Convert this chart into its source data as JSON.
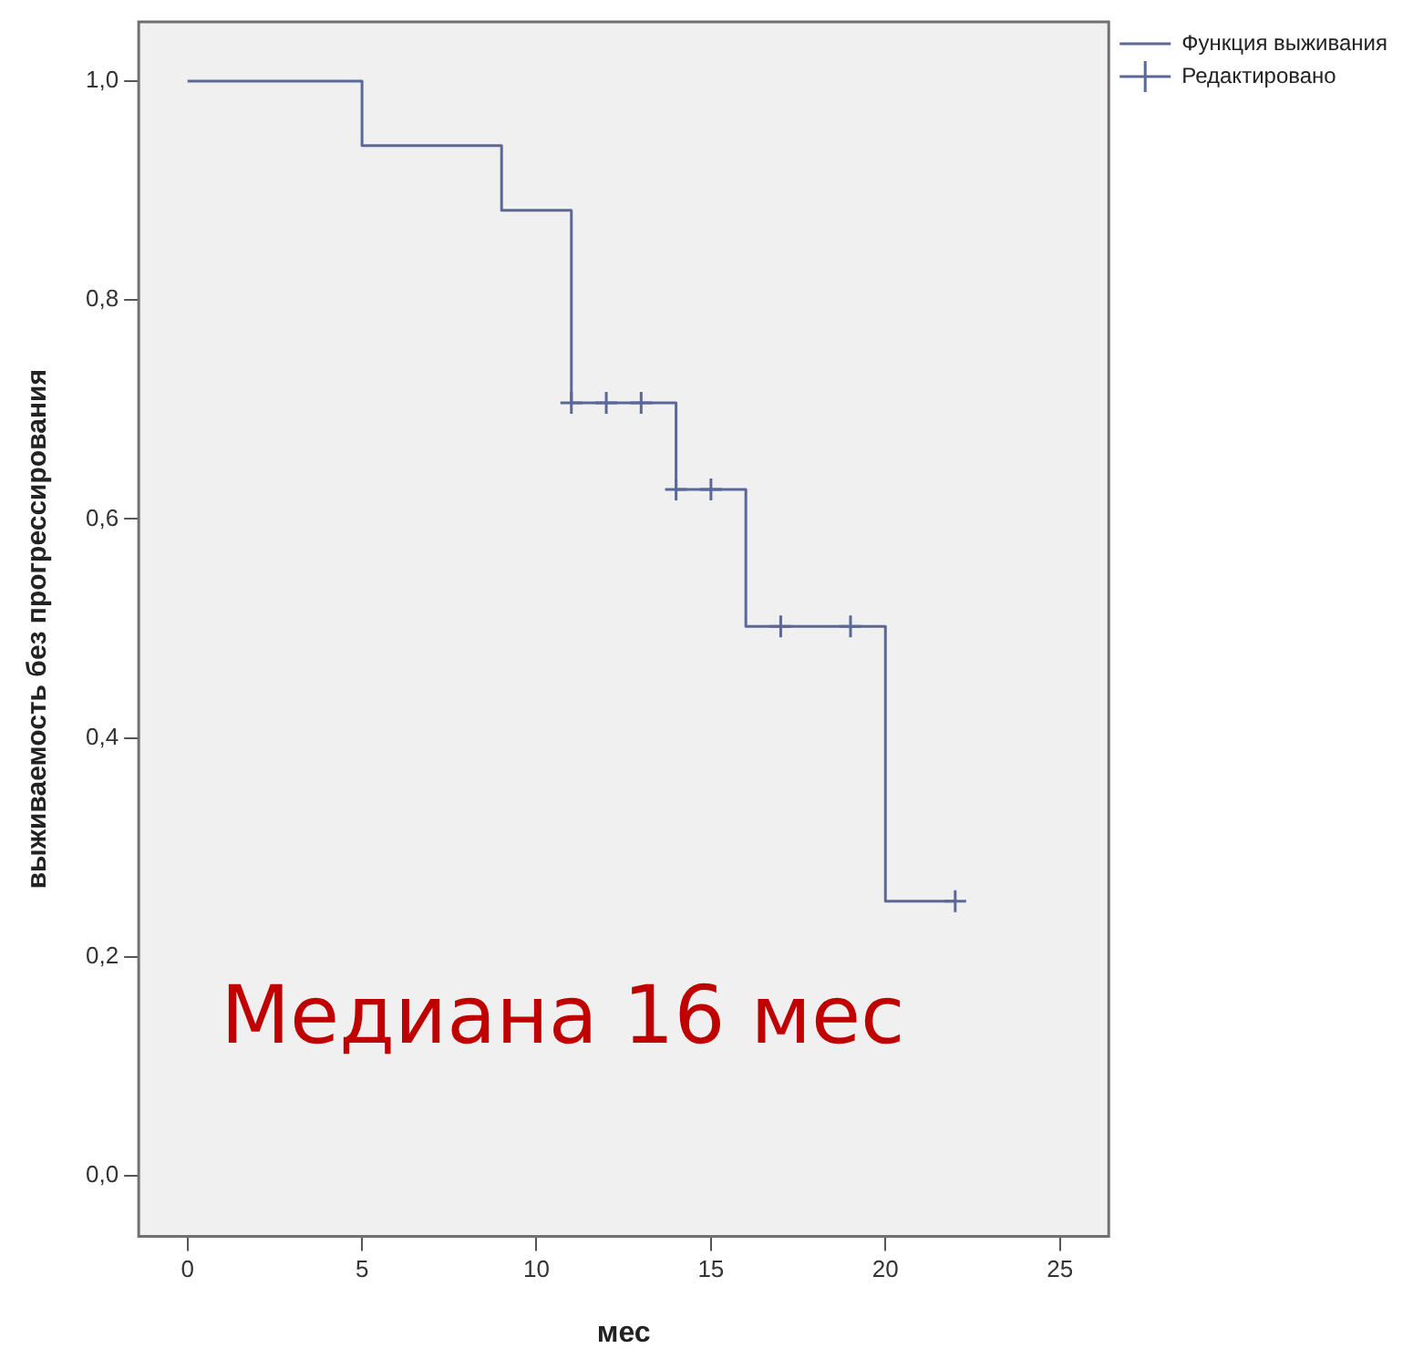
{
  "chart_data": {
    "type": "step",
    "xlabel": "мес",
    "ylabel": "выживаемость без прогрессирования",
    "xlim": [
      -1.4,
      26.4
    ],
    "xticks": [
      0,
      5,
      10,
      15,
      20,
      25
    ],
    "ylim": [
      -0.055,
      1.054
    ],
    "yticks": [
      {
        "value": 0,
        "label": "0,0"
      },
      {
        "value": 0.2,
        "label": "0,2"
      },
      {
        "value": 0.4,
        "label": "0,4"
      },
      {
        "value": 0.6,
        "label": "0,6"
      },
      {
        "value": 0.8,
        "label": "0,8"
      },
      {
        "value": 1,
        "label": "1,0"
      }
    ],
    "grid": false,
    "legend": "top right",
    "series": [
      {
        "name": "Функция выживания",
        "color": "#5b6897",
        "x": [
          0,
          5,
          9,
          11,
          14,
          16,
          20,
          22
        ],
        "values": [
          1,
          0.941,
          0.882,
          0.706,
          0.627,
          0.502,
          0.251,
          0.251
        ]
      },
      {
        "name": "Редактировано",
        "type": "scatter",
        "marker": "cross",
        "color": "#5b6897",
        "x": [
          11,
          12,
          13,
          14,
          15,
          17,
          19,
          22
        ],
        "values": [
          0.706,
          0.706,
          0.706,
          0.627,
          0.627,
          0.502,
          0.502,
          0.251
        ]
      }
    ],
    "annotations": [
      "Медиана 16 мес"
    ]
  }
}
